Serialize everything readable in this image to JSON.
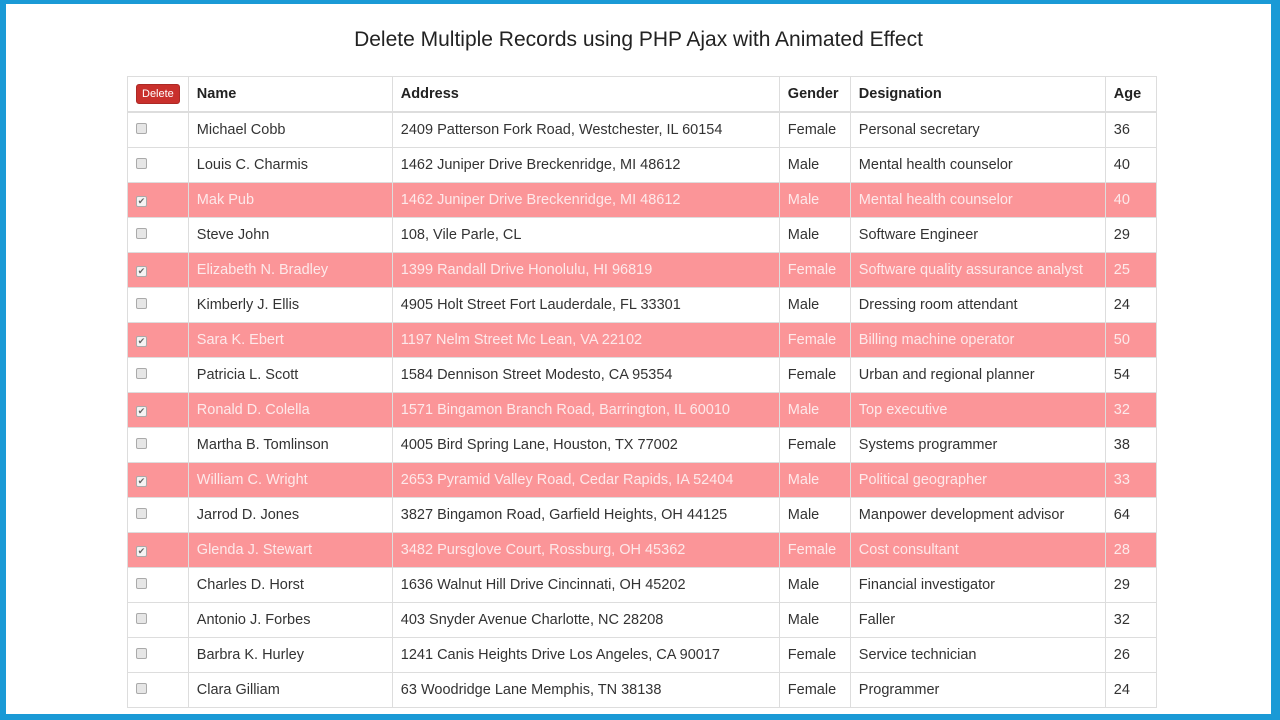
{
  "title": "Delete Multiple Records using PHP Ajax with Animated Effect",
  "delete_label": "Delete",
  "headers": [
    "Name",
    "Address",
    "Gender",
    "Designation",
    "Age"
  ],
  "rows": [
    {
      "checked": false,
      "name": "Michael Cobb",
      "address": "2409 Patterson Fork Road, Westchester, IL 60154",
      "gender": "Female",
      "designation": "Personal secretary",
      "age": "36"
    },
    {
      "checked": false,
      "name": "Louis C. Charmis",
      "address": "1462 Juniper Drive Breckenridge, MI 48612",
      "gender": "Male",
      "designation": "Mental health counselor",
      "age": "40"
    },
    {
      "checked": true,
      "name": "Mak Pub",
      "address": "1462 Juniper Drive Breckenridge, MI 48612",
      "gender": "Male",
      "designation": "Mental health counselor",
      "age": "40"
    },
    {
      "checked": false,
      "name": "Steve John",
      "address": "108, Vile Parle, CL",
      "gender": "Male",
      "designation": "Software Engineer",
      "age": "29"
    },
    {
      "checked": true,
      "name": "Elizabeth N. Bradley",
      "address": "1399 Randall Drive Honolulu, HI 96819",
      "gender": "Female",
      "designation": "Software quality assurance analyst",
      "age": "25"
    },
    {
      "checked": false,
      "name": "Kimberly J. Ellis",
      "address": "4905 Holt Street Fort Lauderdale, FL 33301",
      "gender": "Male",
      "designation": "Dressing room attendant",
      "age": "24"
    },
    {
      "checked": true,
      "name": "Sara K. Ebert",
      "address": "1197 Nelm Street Mc Lean, VA 22102",
      "gender": "Female",
      "designation": "Billing machine operator",
      "age": "50"
    },
    {
      "checked": false,
      "name": "Patricia L. Scott",
      "address": "1584 Dennison Street Modesto, CA 95354",
      "gender": "Female",
      "designation": "Urban and regional planner",
      "age": "54"
    },
    {
      "checked": true,
      "name": "Ronald D. Colella",
      "address": "1571 Bingamon Branch Road, Barrington, IL 60010",
      "gender": "Male",
      "designation": "Top executive",
      "age": "32"
    },
    {
      "checked": false,
      "name": "Martha B. Tomlinson",
      "address": "4005 Bird Spring Lane, Houston, TX 77002",
      "gender": "Female",
      "designation": "Systems programmer",
      "age": "38"
    },
    {
      "checked": true,
      "name": "William C. Wright",
      "address": "2653 Pyramid Valley Road, Cedar Rapids, IA 52404",
      "gender": "Male",
      "designation": "Political geographer",
      "age": "33"
    },
    {
      "checked": false,
      "name": "Jarrod D. Jones",
      "address": "3827 Bingamon Road, Garfield Heights, OH 44125",
      "gender": "Male",
      "designation": "Manpower development advisor",
      "age": "64"
    },
    {
      "checked": true,
      "name": "Glenda J. Stewart",
      "address": "3482 Pursglove Court, Rossburg, OH 45362",
      "gender": "Female",
      "designation": "Cost consultant",
      "age": "28"
    },
    {
      "checked": false,
      "name": "Charles D. Horst",
      "address": "1636 Walnut Hill Drive Cincinnati, OH 45202",
      "gender": "Male",
      "designation": "Financial investigator",
      "age": "29"
    },
    {
      "checked": false,
      "name": "Antonio J. Forbes",
      "address": "403 Snyder Avenue Charlotte, NC 28208",
      "gender": "Male",
      "designation": "Faller",
      "age": "32"
    },
    {
      "checked": false,
      "name": "Barbra K. Hurley",
      "address": "1241 Canis Heights Drive Los Angeles, CA 90017",
      "gender": "Female",
      "designation": "Service technician",
      "age": "26"
    },
    {
      "checked": false,
      "name": "Clara Gilliam",
      "address": "63 Woodridge Lane Memphis, TN 38138",
      "gender": "Female",
      "designation": "Programmer",
      "age": "24"
    }
  ],
  "colors": {
    "selected_row": "#fb9598",
    "delete_button": "#c9302c",
    "frame": "#1a9ad6"
  }
}
